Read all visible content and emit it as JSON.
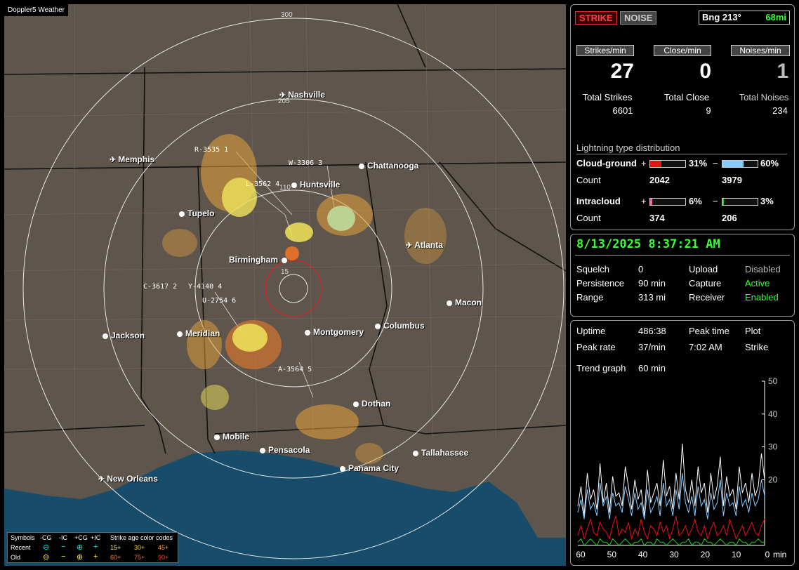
{
  "map": {
    "title": "Doppler5 Weather",
    "ring_labels": [
      "300",
      "205",
      "110",
      "15"
    ],
    "cities": [
      {
        "name": "Nashville",
        "icon": "airport"
      },
      {
        "name": "Memphis",
        "icon": "airport"
      },
      {
        "name": "Chattanooga",
        "icon": "dot"
      },
      {
        "name": "Huntsville",
        "icon": "dot"
      },
      {
        "name": "Tupelo",
        "icon": "dot"
      },
      {
        "name": "Atlanta",
        "icon": "airport"
      },
      {
        "name": "Birmingham",
        "icon": "dot"
      },
      {
        "name": "Macon",
        "icon": "dot"
      },
      {
        "name": "Jackson",
        "icon": "dot"
      },
      {
        "name": "Meridian",
        "icon": "dot"
      },
      {
        "name": "Montgomery",
        "icon": "dot"
      },
      {
        "name": "Columbus",
        "icon": "dot"
      },
      {
        "name": "Dothan",
        "icon": "dot"
      },
      {
        "name": "Mobile",
        "icon": "dot"
      },
      {
        "name": "Pensacola",
        "icon": "dot"
      },
      {
        "name": "Tallahassee",
        "icon": "dot"
      },
      {
        "name": "Panama City",
        "icon": "dot"
      },
      {
        "name": "New Orleans",
        "icon": "airport"
      }
    ],
    "storm_labels": [
      "R-3535 1",
      "W-3306 3",
      "L-3562 4",
      "C-3617 2",
      "Y-4140 4",
      "U-2754 6",
      "A-3564 5"
    ]
  },
  "legend": {
    "symbols_label": "Symbols",
    "col_cg_neg": "-CG",
    "col_ic_neg": "-IC",
    "col_cg_pos": "+CG",
    "col_ic_pos": "+IC",
    "age_title": "Strike age color codes",
    "recent": "Recent",
    "old": "Old",
    "ages_recent": [
      "15+",
      "30+",
      "45+"
    ],
    "ages_old": [
      "60+",
      "75+",
      "90+"
    ],
    "age_colors_recent": [
      "#ffff66",
      "#ffcc33",
      "#ff9933"
    ],
    "age_colors_old": [
      "#ff8833",
      "#ff6622",
      "#ff4422"
    ]
  },
  "status": {
    "strike_tab": "STRIKE",
    "noise_tab": "NOISE",
    "bearing": "Bng 213°",
    "distance": "68mi",
    "rates": [
      {
        "label": "Strikes/min",
        "value": "27"
      },
      {
        "label": "Close/min",
        "value": "0"
      },
      {
        "label": "Noises/min",
        "value": "1"
      }
    ],
    "totals": [
      {
        "label": "Total Strikes",
        "value": "6601"
      },
      {
        "label": "Total Close",
        "value": "9"
      },
      {
        "label": "Total Noises",
        "value": "234"
      }
    ],
    "dist_title": "Lightning type distribution",
    "cg_label": "Cloud-ground",
    "ic_label": "Intracloud",
    "count_label": "Count",
    "plus": "+",
    "minus": "−",
    "cg_pos_pct": "31%",
    "cg_neg_pct": "60%",
    "cg_pos_count": "2042",
    "cg_neg_count": "3979",
    "ic_pos_pct": "6%",
    "ic_neg_pct": "3%",
    "ic_pos_count": "374",
    "ic_neg_count": "206",
    "cg_pos_frac": 0.31,
    "cg_neg_frac": 0.6,
    "ic_pos_frac": 0.06,
    "ic_neg_frac": 0.03,
    "colors": {
      "cg_pos": "#ee1111",
      "cg_neg": "#88ccff",
      "ic_pos": "#ee66aa",
      "ic_neg": "#22cc22"
    }
  },
  "settings": {
    "datetime": "8/13/2025 8:37:21 AM",
    "squelch_label": "Squelch",
    "squelch": "0",
    "upload_label": "Upload",
    "upload": "Disabled",
    "persistence_label": "Persistence",
    "persistence": "90 min",
    "capture_label": "Capture",
    "capture": "Active",
    "range_label": "Range",
    "range": "313 mi",
    "receiver_label": "Receiver",
    "receiver": "Enabled"
  },
  "stats": {
    "uptime_label": "Uptime",
    "uptime": "486:38",
    "peak_time_label": "Peak time",
    "peak_time": "7:02 AM",
    "plot_label": "Plot",
    "plot": "Strike",
    "peak_rate_label": "Peak rate",
    "peak_rate": "37/min",
    "trend_label": "Trend graph",
    "trend": "60 min"
  },
  "chart_data": {
    "type": "line",
    "title": "",
    "xlabel": "min",
    "ylabel": "",
    "x_ticks": [
      "60",
      "50",
      "40",
      "30",
      "20",
      "10",
      "0"
    ],
    "y_ticks": [
      "50",
      "40",
      "30",
      "20"
    ],
    "xlim": [
      60,
      0
    ],
    "ylim": [
      0,
      50
    ],
    "series": [
      {
        "color": "#ffffff",
        "values": [
          12,
          18,
          9,
          22,
          14,
          17,
          11,
          25,
          13,
          19,
          10,
          21,
          15,
          16,
          12,
          24,
          18,
          11,
          20,
          14,
          17,
          9,
          23,
          13,
          16,
          19,
          12,
          26,
          15,
          18,
          11,
          22,
          14,
          31,
          17,
          13,
          20,
          12,
          24,
          16,
          19,
          10,
          22,
          14,
          18,
          27,
          12,
          21,
          15,
          17,
          11,
          24,
          16,
          19,
          13,
          22,
          15,
          18,
          28,
          20
        ]
      },
      {
        "color": "#88ccff",
        "values": [
          10,
          14,
          8,
          17,
          11,
          13,
          9,
          19,
          12,
          15,
          8,
          16,
          12,
          13,
          10,
          18,
          14,
          9,
          16,
          11,
          13,
          8,
          17,
          10,
          12,
          15,
          9,
          19,
          12,
          14,
          9,
          17,
          11,
          22,
          13,
          10,
          15,
          9,
          18,
          12,
          14,
          8,
          16,
          11,
          13,
          20,
          9,
          16,
          12,
          13,
          9,
          18,
          12,
          14,
          10,
          16,
          12,
          14,
          20,
          15
        ]
      },
      {
        "color": "#ee1111",
        "values": [
          3,
          6,
          2,
          5,
          8,
          4,
          3,
          7,
          5,
          4,
          2,
          6,
          9,
          3,
          5,
          4,
          7,
          2,
          5,
          3,
          8,
          4,
          2,
          6,
          5,
          3,
          7,
          4,
          6,
          2,
          5,
          9,
          3,
          4,
          6,
          3,
          5,
          8,
          4,
          3,
          6,
          2,
          5,
          7,
          3,
          4,
          6,
          3,
          8,
          5,
          2,
          4,
          6,
          3,
          5,
          7,
          4,
          3,
          6,
          8
        ]
      },
      {
        "color": "#22cc22",
        "values": [
          1,
          2,
          0,
          1,
          2,
          1,
          0,
          2,
          1,
          1,
          0,
          2,
          1,
          0,
          1,
          2,
          1,
          0,
          1,
          1,
          2,
          0,
          1,
          1,
          0,
          2,
          1,
          1,
          0,
          1,
          2,
          1,
          0,
          1,
          1,
          2,
          0,
          1,
          1,
          0,
          2,
          1,
          1,
          0,
          1,
          2,
          1,
          0,
          1,
          1,
          0,
          2,
          1,
          1,
          0,
          1,
          1,
          2,
          1,
          1
        ]
      }
    ]
  }
}
